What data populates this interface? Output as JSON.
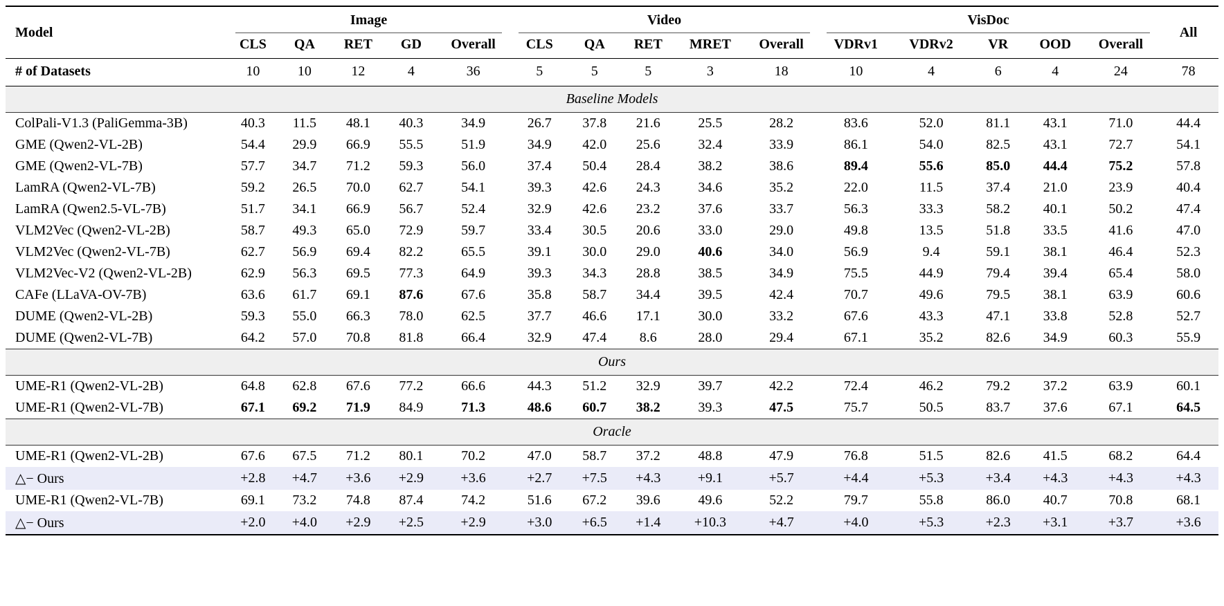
{
  "table": {
    "model_header": "Model",
    "all_header": "All",
    "groups": [
      {
        "label": "Image",
        "cols": [
          "CLS",
          "QA",
          "RET",
          "GD",
          "Overall"
        ]
      },
      {
        "label": "Video",
        "cols": [
          "CLS",
          "QA",
          "RET",
          "MRET",
          "Overall"
        ]
      },
      {
        "label": "VisDoc",
        "cols": [
          "VDRv1",
          "VDRv2",
          "VR",
          "OOD",
          "Overall"
        ]
      }
    ],
    "datasets_row": {
      "label": "# of Datasets",
      "values": [
        "10",
        "10",
        "12",
        "4",
        "36",
        "5",
        "5",
        "5",
        "3",
        "18",
        "10",
        "4",
        "6",
        "4",
        "24",
        "78"
      ]
    },
    "sections": [
      {
        "title": "Baseline Models",
        "rows": [
          {
            "model": "ColPali-V1.3 (PaliGemma-3B)",
            "values": [
              "40.3",
              "11.5",
              "48.1",
              "40.3",
              "34.9",
              "26.7",
              "37.8",
              "21.6",
              "25.5",
              "28.2",
              "83.6",
              "52.0",
              "81.1",
              "43.1",
              "71.0",
              "44.4"
            ],
            "bold": []
          },
          {
            "model": "GME (Qwen2-VL-2B)",
            "values": [
              "54.4",
              "29.9",
              "66.9",
              "55.5",
              "51.9",
              "34.9",
              "42.0",
              "25.6",
              "32.4",
              "33.9",
              "86.1",
              "54.0",
              "82.5",
              "43.1",
              "72.7",
              "54.1"
            ],
            "bold": []
          },
          {
            "model": "GME (Qwen2-VL-7B)",
            "values": [
              "57.7",
              "34.7",
              "71.2",
              "59.3",
              "56.0",
              "37.4",
              "50.4",
              "28.4",
              "38.2",
              "38.6",
              "89.4",
              "55.6",
              "85.0",
              "44.4",
              "75.2",
              "57.8"
            ],
            "bold": [
              10,
              11,
              12,
              13,
              14
            ]
          },
          {
            "model": "LamRA (Qwen2-VL-7B)",
            "values": [
              "59.2",
              "26.5",
              "70.0",
              "62.7",
              "54.1",
              "39.3",
              "42.6",
              "24.3",
              "34.6",
              "35.2",
              "22.0",
              "11.5",
              "37.4",
              "21.0",
              "23.9",
              "40.4"
            ],
            "bold": []
          },
          {
            "model": "LamRA (Qwen2.5-VL-7B)",
            "values": [
              "51.7",
              "34.1",
              "66.9",
              "56.7",
              "52.4",
              "32.9",
              "42.6",
              "23.2",
              "37.6",
              "33.7",
              "56.3",
              "33.3",
              "58.2",
              "40.1",
              "50.2",
              "47.4"
            ],
            "bold": []
          },
          {
            "model": "VLM2Vec (Qwen2-VL-2B)",
            "values": [
              "58.7",
              "49.3",
              "65.0",
              "72.9",
              "59.7",
              "33.4",
              "30.5",
              "20.6",
              "33.0",
              "29.0",
              "49.8",
              "13.5",
              "51.8",
              "33.5",
              "41.6",
              "47.0"
            ],
            "bold": []
          },
          {
            "model": "VLM2Vec (Qwen2-VL-7B)",
            "values": [
              "62.7",
              "56.9",
              "69.4",
              "82.2",
              "65.5",
              "39.1",
              "30.0",
              "29.0",
              "40.6",
              "34.0",
              "56.9",
              "9.4",
              "59.1",
              "38.1",
              "46.4",
              "52.3"
            ],
            "bold": [
              8
            ]
          },
          {
            "model": "VLM2Vec-V2 (Qwen2-VL-2B)",
            "values": [
              "62.9",
              "56.3",
              "69.5",
              "77.3",
              "64.9",
              "39.3",
              "34.3",
              "28.8",
              "38.5",
              "34.9",
              "75.5",
              "44.9",
              "79.4",
              "39.4",
              "65.4",
              "58.0"
            ],
            "bold": []
          },
          {
            "model": "CAFe (LLaVA-OV-7B)",
            "values": [
              "63.6",
              "61.7",
              "69.1",
              "87.6",
              "67.6",
              "35.8",
              "58.7",
              "34.4",
              "39.5",
              "42.4",
              "70.7",
              "49.6",
              "79.5",
              "38.1",
              "63.9",
              "60.6"
            ],
            "bold": [
              3
            ]
          },
          {
            "model": "DUME (Qwen2-VL-2B)",
            "values": [
              "59.3",
              "55.0",
              "66.3",
              "78.0",
              "62.5",
              "37.7",
              "46.6",
              "17.1",
              "30.0",
              "33.2",
              "67.6",
              "43.3",
              "47.1",
              "33.8",
              "52.8",
              "52.7"
            ],
            "bold": []
          },
          {
            "model": "DUME (Qwen2-VL-7B)",
            "values": [
              "64.2",
              "57.0",
              "70.8",
              "81.8",
              "66.4",
              "32.9",
              "47.4",
              "8.6",
              "28.0",
              "29.4",
              "67.1",
              "35.2",
              "82.6",
              "34.9",
              "60.3",
              "55.9"
            ],
            "bold": []
          }
        ]
      },
      {
        "title": "Ours",
        "rows": [
          {
            "model": "UME-R1 (Qwen2-VL-2B)",
            "values": [
              "64.8",
              "62.8",
              "67.6",
              "77.2",
              "66.6",
              "44.3",
              "51.2",
              "32.9",
              "39.7",
              "42.2",
              "72.4",
              "46.2",
              "79.2",
              "37.2",
              "63.9",
              "60.1"
            ],
            "bold": []
          },
          {
            "model": "UME-R1 (Qwen2-VL-7B)",
            "values": [
              "67.1",
              "69.2",
              "71.9",
              "84.9",
              "71.3",
              "48.6",
              "60.7",
              "38.2",
              "39.3",
              "47.5",
              "75.7",
              "50.5",
              "83.7",
              "37.6",
              "67.1",
              "64.5"
            ],
            "bold": [
              0,
              1,
              2,
              4,
              5,
              6,
              7,
              9,
              15
            ]
          }
        ]
      },
      {
        "title": "Oracle",
        "rows": [
          {
            "model": "UME-R1 (Qwen2-VL-2B)",
            "values": [
              "67.6",
              "67.5",
              "71.2",
              "80.1",
              "70.2",
              "47.0",
              "58.7",
              "37.2",
              "48.8",
              "47.9",
              "76.8",
              "51.5",
              "82.6",
              "41.5",
              "68.2",
              "64.4"
            ],
            "bold": []
          },
          {
            "model": "△− Ours",
            "values": [
              "+2.8",
              "+4.7",
              "+3.6",
              "+2.9",
              "+3.6",
              "+2.7",
              "+7.5",
              "+4.3",
              "+9.1",
              "+5.7",
              "+4.4",
              "+5.3",
              "+3.4",
              "+4.3",
              "+4.3",
              "+4.3"
            ],
            "bold": [],
            "delta": true
          },
          {
            "model": "UME-R1 (Qwen2-VL-7B)",
            "values": [
              "69.1",
              "73.2",
              "74.8",
              "87.4",
              "74.2",
              "51.6",
              "67.2",
              "39.6",
              "49.6",
              "52.2",
              "79.7",
              "55.8",
              "86.0",
              "40.7",
              "70.8",
              "68.1"
            ],
            "bold": []
          },
          {
            "model": "△− Ours",
            "values": [
              "+2.0",
              "+4.0",
              "+2.9",
              "+2.5",
              "+2.9",
              "+3.0",
              "+6.5",
              "+1.4",
              "+10.3",
              "+4.7",
              "+4.0",
              "+5.3",
              "+2.3",
              "+3.1",
              "+3.7",
              "+3.6"
            ],
            "bold": [],
            "delta": true
          }
        ]
      }
    ],
    "colors": {
      "section_bg": "#efefef",
      "delta_bg": "#eaebf8"
    }
  }
}
